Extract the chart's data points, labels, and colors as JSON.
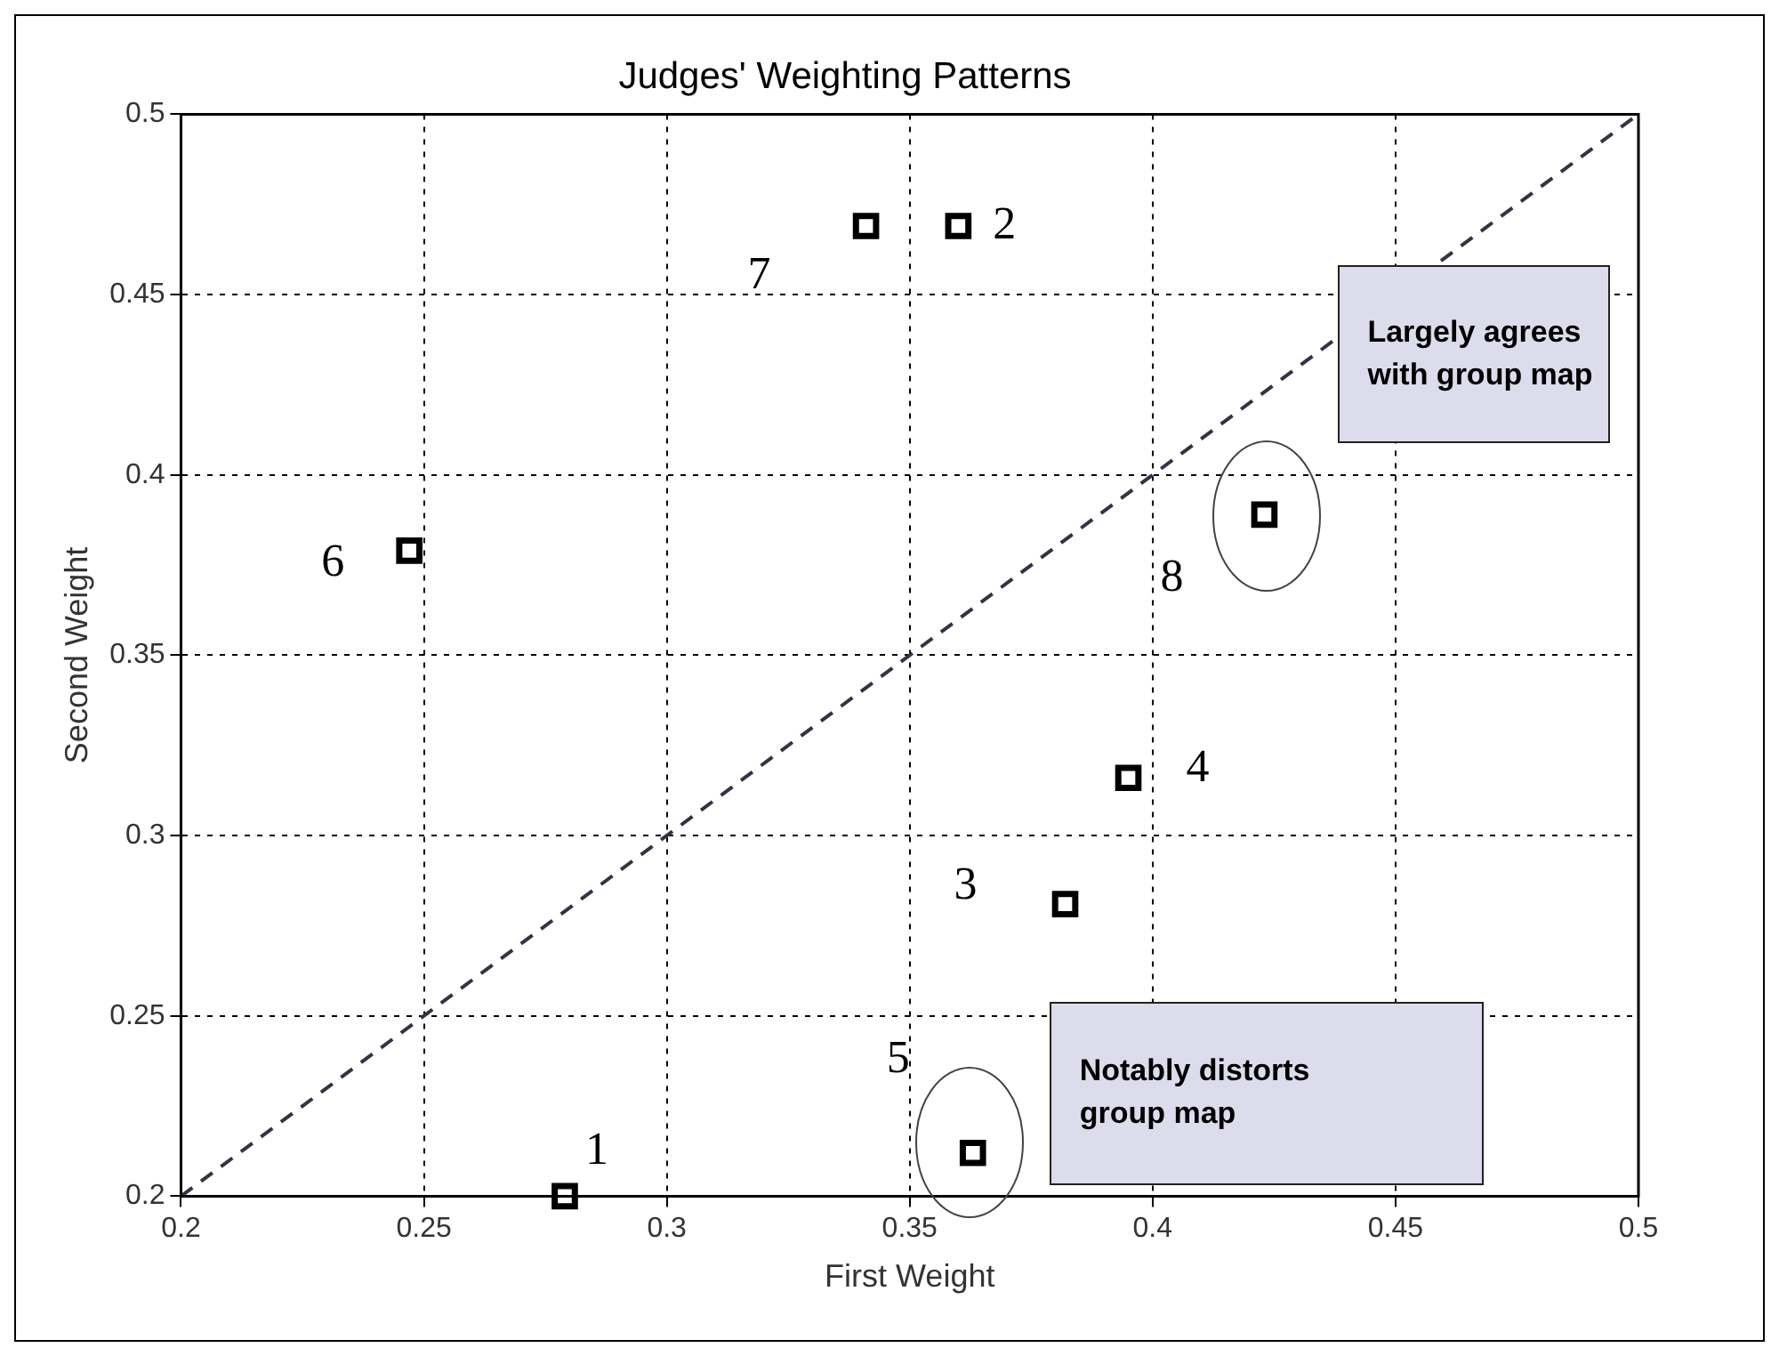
{
  "chart_data": {
    "type": "scatter",
    "title": "Judges' Weighting Patterns",
    "xlabel": "First Weight",
    "ylabel": "Second Weight",
    "series": [
      {
        "type": "scatter",
        "color": "#000000",
        "marker": "square",
        "x": [
          0.279,
          0.36,
          0.382,
          0.395,
          0.363,
          0.247,
          0.341,
          0.423
        ],
        "values": [
          0.2,
          0.469,
          0.281,
          0.316,
          0.212,
          0.379,
          0.469,
          0.389
        ]
      },
      {
        "type": "line",
        "color": "#333344",
        "marker": "none",
        "line_style": "dashed",
        "x": [
          0.2,
          0.5
        ],
        "values": [
          0.2,
          0.5
        ]
      }
    ],
    "xlim": [
      0.2,
      0.5
    ],
    "ylim": [
      0.2,
      0.5
    ],
    "xticks": [
      0.2,
      0.25,
      0.3,
      0.35,
      0.4,
      0.45,
      0.5
    ],
    "yticks": [
      0.2,
      0.25,
      0.3,
      0.35,
      0.4,
      0.45,
      0.5
    ],
    "grid": true,
    "legend": false,
    "annotations": [
      {
        "text": "1",
        "x": 0.279,
        "y": 0.2
      },
      {
        "text": "2",
        "x": 0.36,
        "y": 0.469
      },
      {
        "text": "3",
        "x": 0.382,
        "y": 0.281
      },
      {
        "text": "4",
        "x": 0.395,
        "y": 0.316
      },
      {
        "text": "5",
        "x": 0.363,
        "y": 0.212
      },
      {
        "text": "6",
        "x": 0.247,
        "y": 0.379
      },
      {
        "text": "7",
        "x": 0.341,
        "y": 0.469
      },
      {
        "text": "8",
        "x": 0.423,
        "y": 0.389
      },
      "Largely agrees with group map",
      "Notably distorts group map"
    ]
  }
}
